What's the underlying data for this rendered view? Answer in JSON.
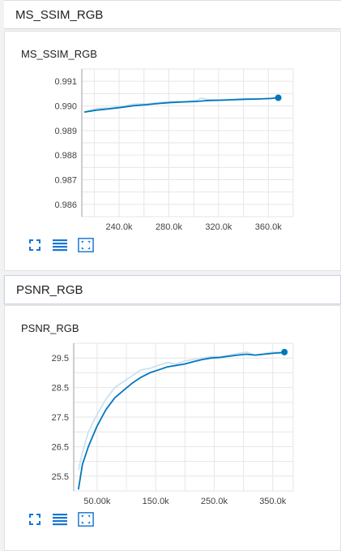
{
  "sections": [
    {
      "title": "MS_SSIM_RGB",
      "chart_title": "MS_SSIM_RGB",
      "chart_data": {
        "type": "line",
        "title": "MS_SSIM_RGB",
        "xlabel": "",
        "ylabel": "",
        "xlim": [
          210000,
          380000
        ],
        "ylim": [
          0.9855,
          0.9915
        ],
        "x_ticks": [
          240000,
          280000,
          320000,
          360000
        ],
        "x_tick_labels": [
          "240.0k",
          "280.0k",
          "320.0k",
          "360.0k"
        ],
        "y_ticks": [
          0.986,
          0.987,
          0.988,
          0.989,
          0.99,
          0.991
        ],
        "y_tick_labels": [
          "0.986",
          "0.987",
          "0.988",
          "0.989",
          "0.990",
          "0.991"
        ],
        "grid": true,
        "series": [
          {
            "role": "raw",
            "color": "#c6dff1",
            "x": [
              212000,
              222000,
              232000,
              242000,
              252000,
              262000,
              272000,
              282000,
              292000,
              302000,
              306000,
              312000,
              322000,
              332000,
              342000,
              352000,
              362000,
              368000
            ],
            "values": [
              0.98975,
              0.9899,
              0.98992,
              0.98998,
              0.99008,
              0.99008,
              0.99014,
              0.99018,
              0.99018,
              0.99022,
              0.99032,
              0.99025,
              0.99025,
              0.99027,
              0.9903,
              0.99028,
              0.99032,
              0.99033
            ]
          },
          {
            "role": "smoothed",
            "color": "#0277bd",
            "x": [
              212000,
              222000,
              232000,
              242000,
              252000,
              262000,
              272000,
              282000,
              292000,
              302000,
              312000,
              322000,
              332000,
              342000,
              352000,
              362000,
              368000
            ],
            "values": [
              0.98975,
              0.98983,
              0.98988,
              0.98994,
              0.99001,
              0.99005,
              0.9901,
              0.99014,
              0.99016,
              0.99018,
              0.99022,
              0.99023,
              0.99025,
              0.99027,
              0.99028,
              0.9903,
              0.99033
            ]
          }
        ]
      }
    },
    {
      "title": "PSNR_RGB",
      "chart_title": "PSNR_RGB",
      "chart_data": {
        "type": "line",
        "title": "PSNR_RGB",
        "xlabel": "",
        "ylabel": "",
        "xlim": [
          10000,
          385000
        ],
        "ylim": [
          25.0,
          30.0
        ],
        "x_ticks": [
          50000,
          150000,
          250000,
          350000
        ],
        "x_tick_labels": [
          "50.00k",
          "150.0k",
          "250.0k",
          "350.0k"
        ],
        "y_ticks": [
          25.5,
          26.5,
          27.5,
          28.5,
          29.5
        ],
        "y_tick_labels": [
          "25.5",
          "26.5",
          "27.5",
          "28.5",
          "29.5"
        ],
        "grid": true,
        "series": [
          {
            "role": "raw",
            "color": "#c6dff1",
            "x": [
              18000,
              25000,
              35000,
              50000,
              65000,
              80000,
              95000,
              110000,
              125000,
              140000,
              155000,
              170000,
              185000,
              200000,
              215000,
              230000,
              245000,
              260000,
              275000,
              290000,
              305000,
              320000,
              335000,
              350000,
              365000,
              370000
            ],
            "values": [
              25.7,
              26.3,
              27.0,
              27.6,
              28.1,
              28.5,
              28.7,
              28.9,
              29.1,
              29.15,
              29.25,
              29.35,
              29.3,
              29.4,
              29.45,
              29.5,
              29.55,
              29.55,
              29.6,
              29.65,
              29.7,
              29.6,
              29.65,
              29.7,
              29.7,
              29.72
            ]
          },
          {
            "role": "smoothed",
            "color": "#0277bd",
            "x": [
              18000,
              25000,
              35000,
              50000,
              65000,
              80000,
              95000,
              110000,
              125000,
              140000,
              155000,
              170000,
              185000,
              200000,
              215000,
              230000,
              245000,
              260000,
              275000,
              290000,
              305000,
              320000,
              335000,
              350000,
              365000,
              370000
            ],
            "values": [
              25.05,
              25.9,
              26.5,
              27.2,
              27.75,
              28.15,
              28.4,
              28.65,
              28.85,
              29.0,
              29.1,
              29.2,
              29.25,
              29.3,
              29.38,
              29.45,
              29.5,
              29.52,
              29.56,
              29.6,
              29.63,
              29.6,
              29.63,
              29.66,
              29.68,
              29.7
            ]
          }
        ]
      }
    }
  ],
  "toolbar": {
    "expand_icon": "expand-icon",
    "data_table_icon": "data-table-icon",
    "fit_domain_icon": "fit-domain-icon",
    "icon_color": "#1976d2"
  }
}
